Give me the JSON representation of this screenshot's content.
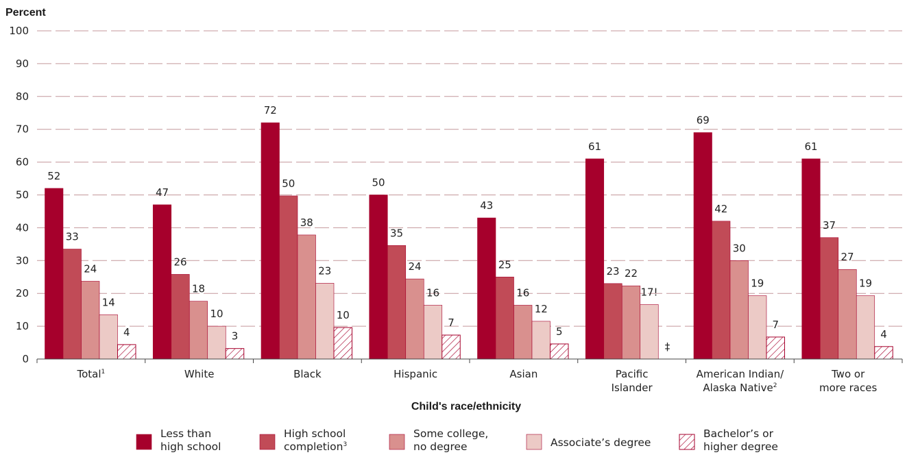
{
  "chart_data": {
    "type": "bar",
    "title": "",
    "ylabel": "Percent",
    "xlabel": "Child's race/ethnicity",
    "ylim": [
      0,
      100
    ],
    "yticks": [
      0,
      10,
      20,
      30,
      40,
      50,
      60,
      70,
      80,
      90,
      100
    ],
    "grid": true,
    "legend_position": "bottom",
    "categories": [
      {
        "lines": [
          "Total"
        ],
        "sup": "1"
      },
      {
        "lines": [
          "White"
        ],
        "sup": ""
      },
      {
        "lines": [
          "Black"
        ],
        "sup": ""
      },
      {
        "lines": [
          "Hispanic"
        ],
        "sup": ""
      },
      {
        "lines": [
          "Asian"
        ],
        "sup": ""
      },
      {
        "lines": [
          "Pacific",
          "Islander"
        ],
        "sup": ""
      },
      {
        "lines": [
          "American Indian/",
          "Alaska Native"
        ],
        "sup": "2"
      },
      {
        "lines": [
          "Two or",
          "more races"
        ],
        "sup": ""
      }
    ],
    "series": [
      {
        "name_lines": [
          "Less than",
          "high school"
        ],
        "sup": "",
        "color": "#a6002c",
        "pattern": "solid",
        "values": [
          52,
          47,
          72,
          50,
          43,
          61,
          69,
          61
        ],
        "labels": [
          "52",
          "47",
          "72",
          "50",
          "43",
          "61",
          "69",
          "61"
        ]
      },
      {
        "name_lines": [
          "High school",
          "completion"
        ],
        "sup": "3",
        "color": "#c14b57",
        "pattern": "solid",
        "values": [
          33.5,
          25.8,
          49.7,
          34.6,
          25,
          23,
          42,
          37
        ],
        "labels": [
          "33",
          "26",
          "50",
          "35",
          "25",
          "23",
          "42",
          "37"
        ]
      },
      {
        "name_lines": [
          "Some college,",
          "no degree"
        ],
        "sup": "",
        "color": "#d9908e",
        "pattern": "solid",
        "values": [
          23.7,
          17.6,
          37.8,
          24.4,
          16.4,
          22.3,
          30,
          27.3
        ],
        "labels": [
          "24",
          "18",
          "38",
          "24",
          "16",
          "22",
          "30",
          "27"
        ]
      },
      {
        "name_lines": [
          "Associate’s degree"
        ],
        "sup": "",
        "color": "#eccac6",
        "pattern": "solid",
        "values": [
          13.5,
          10,
          23.1,
          16.4,
          11.5,
          16.6,
          19.3,
          19.3
        ],
        "labels": [
          "14",
          "10",
          "23",
          "16",
          "12",
          "17!",
          "19",
          "19"
        ]
      },
      {
        "name_lines": [
          "Bachelor’s or",
          "higher degree"
        ],
        "sup": "",
        "color": "#a6002c",
        "pattern": "hatch",
        "values": [
          4.4,
          3.2,
          9.6,
          7.3,
          4.6,
          null,
          6.7,
          3.8
        ],
        "labels": [
          "4",
          "3",
          "10",
          "7",
          "5",
          "‡",
          "7",
          "4"
        ]
      }
    ]
  }
}
